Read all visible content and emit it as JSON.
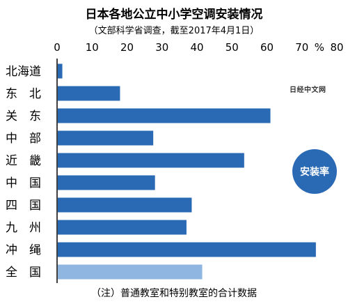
{
  "title": "日本各地公立中小学空调安装情况",
  "subtitle": "（文部科学省调查，截至2017年4月1日）",
  "note": "（注）普通教室和特别教室的合计数据",
  "watermark": "日经中文网",
  "badge": "安装率",
  "colors": {
    "bar": "#2a6ab5",
    "bar_total": "#8fb6e0",
    "axis": "#000000",
    "badge": "#2a6ab5"
  },
  "chart_data": {
    "type": "bar",
    "orientation": "horizontal",
    "categories": [
      "北海道",
      "东　北",
      "关　东",
      "中　部",
      "近　畿",
      "中　国",
      "四　国",
      "九　州",
      "冲　绳",
      "全　国"
    ],
    "values": [
      1.5,
      18,
      61,
      27.5,
      53.5,
      28,
      38.5,
      37,
      74,
      41.5
    ],
    "x_ticks": [
      "0",
      "10",
      "20",
      "30",
      "40",
      "50",
      "60",
      "70",
      "%",
      "80"
    ],
    "xlim": [
      0,
      80
    ],
    "unit": "%",
    "grid": false
  }
}
